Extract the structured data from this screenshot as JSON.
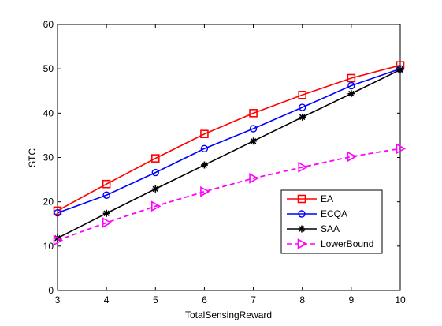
{
  "chart_data": {
    "type": "line",
    "title": "",
    "xlabel": "TotalSensingReward",
    "ylabel": "STC",
    "xlim": [
      3,
      10
    ],
    "ylim": [
      0,
      60
    ],
    "xticks": [
      "3",
      "4",
      "5",
      "6",
      "7",
      "8",
      "9",
      "10"
    ],
    "yticks": [
      "0",
      "10",
      "20",
      "30",
      "40",
      "50",
      "60"
    ],
    "grid": false,
    "legend_position": "lower-right",
    "x": [
      3,
      4,
      5,
      6,
      7,
      8,
      9,
      10
    ],
    "series": [
      {
        "name": "EA",
        "values": [
          18.0,
          24.0,
          29.8,
          35.3,
          40.0,
          44.1,
          47.9,
          50.8
        ],
        "color": "#ff0000",
        "marker": "square",
        "dash": "solid"
      },
      {
        "name": "ECQA",
        "values": [
          17.5,
          21.5,
          26.6,
          32.0,
          36.5,
          41.3,
          46.2,
          50.0
        ],
        "color": "#0000ff",
        "marker": "circle",
        "dash": "solid"
      },
      {
        "name": "SAA",
        "values": [
          11.8,
          17.4,
          22.9,
          28.3,
          33.7,
          39.1,
          44.4,
          49.8
        ],
        "color": "#000000",
        "marker": "star",
        "dash": "solid"
      },
      {
        "name": "LowerBound",
        "values": [
          11.3,
          15.3,
          19.0,
          22.3,
          25.3,
          27.8,
          30.2,
          32.0
        ],
        "color": "#ff00ff",
        "marker": "triangle-right",
        "dash": "dashed"
      }
    ]
  }
}
